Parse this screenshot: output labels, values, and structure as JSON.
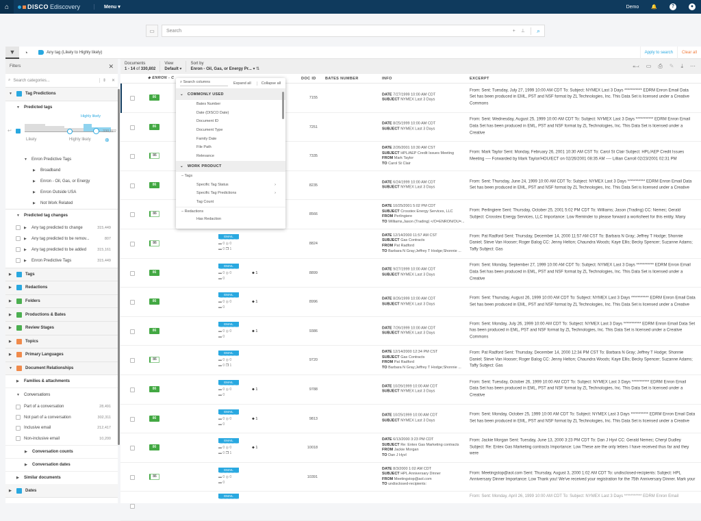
{
  "nav": {
    "brand": "DISCO",
    "product": "Ediscovery",
    "menu": "Menu",
    "user": "Demo"
  },
  "search": {
    "placeholder": "Search"
  },
  "filterbar": {
    "chip": "Any tag (Likely to Highly likely)",
    "apply": "Apply to search",
    "clear": "Clear all"
  },
  "sidebar": {
    "title": "Filters",
    "search_placeholder": "Search categories...",
    "tag_predictions": "Tag Predictions",
    "predicted_tags": "Predicted tags",
    "slider": {
      "label_top": "Highly likely",
      "label_low": "Likely",
      "label_high": "Highly likely",
      "count": "330,802",
      "range": [
        "Likely",
        "Highly likely"
      ]
    },
    "enron_predictive_tags": "Enron Predictive Tags",
    "predictive_children": [
      "Broadband",
      "Enron - Oil, Gas, or Energy",
      "Enron Outside USA",
      "Not Work Related"
    ],
    "predicted_tag_changes": "Predicted tag changes",
    "changes": [
      {
        "label": "Any tag predicted to change",
        "count": "315,449"
      },
      {
        "label": "Any tag predicted to be remov...",
        "count": "807"
      },
      {
        "label": "Any tag predicted to be added",
        "count": "315,161"
      },
      {
        "label": "Enron Predictive Tags",
        "count": "315,449"
      }
    ],
    "categories": [
      {
        "label": "Tags",
        "color": "#29a8e0"
      },
      {
        "label": "Redactions",
        "color": "#29a8e0"
      },
      {
        "label": "Folders",
        "color": "#4caf50"
      },
      {
        "label": "Productions & Bates",
        "color": "#4caf50"
      },
      {
        "label": "Review Stages",
        "color": "#4caf50"
      },
      {
        "label": "Topics",
        "color": "#f08a4b"
      },
      {
        "label": "Primary Languages",
        "color": "#f08a4b"
      }
    ],
    "doc_rel": "Document Relationships",
    "families": "Families & attachments",
    "conversations": "Conversations",
    "conv_items": [
      {
        "label": "Part of a conversation",
        "count": "28,491"
      },
      {
        "label": "Not part of a conversation",
        "count": "302,311"
      },
      {
        "label": "Inclusive email",
        "count": "212,417"
      },
      {
        "label": "Non-inclusive email",
        "count": "10,200"
      }
    ],
    "conv_counts": "Conversation counts",
    "conv_dates": "Conversation dates",
    "similar": "Similar documents",
    "dates": "Dates"
  },
  "toolbar": {
    "documents_label": "Documents",
    "range": "1 - 14",
    "of": "of",
    "total": "330,802",
    "view_label": "View",
    "view_value": "Default",
    "sort_label": "Sort by",
    "sort_value": "Enron - Oil, Gas, or Energy Pr..."
  },
  "columns": {
    "tag": "ENRON - C",
    "docid": "DOC ID",
    "bates": "BATES NUMBER",
    "info": "INFO",
    "excerpt": "EXCERPT"
  },
  "dropdown": {
    "search_placeholder": "Search columns",
    "expand": "Expand all",
    "collapse": "Collapse all",
    "common": "COMMONLY USED",
    "common_items": [
      "Bates Number",
      "Date (DISCO Date)",
      "Document ID",
      "Document Type",
      "Family Date",
      "File Path",
      "Relevance"
    ],
    "work": "WORK PRODUCT",
    "tags_group": "Tags",
    "tag_items": [
      "Specific Tag Status",
      "Specific Tag Predictions",
      "Tag Count"
    ],
    "redactions_group": "Redactions",
    "redaction_items": [
      "Has Redaction"
    ]
  },
  "rows": [
    {
      "score": "86",
      "style": "filled",
      "type": null,
      "tags": null,
      "docid": "7155",
      "date": "7/27/1999 10:00 AM CDT",
      "subject": "NYMEX Last 3 Days",
      "from": null,
      "to": null,
      "excerpt": "From: Sent: Tuesday, July 27, 1999 10:00 AM CDT To: Subject: NYMEX Last 3 Days *********** EDRM Enron Email Data Set has been produced in EML, PST and NSF format by ZL Technologies, Inc. This Data Set is licensed under a Creative Commons"
    },
    {
      "score": "86",
      "style": "filled",
      "type": null,
      "tags": null,
      "docid": "7251",
      "date": "8/25/1999 10:00 AM CDT",
      "subject": "NYMEX Last 3 Days",
      "from": null,
      "to": null,
      "excerpt": "From: Sent: Wednesday, August 25, 1999 10:00 AM CDT To: Subject: NYMEX Last 3 Days *********** EDRM Enron Email Data Set has been produced in EML, PST and NSF format by ZL Technologies, Inc. This Data Set is licensed under a Creative"
    },
    {
      "score": "86",
      "style": "outline",
      "type": null,
      "tags": null,
      "docid": "7335",
      "date": "2/26/2001 10:30 AM CST",
      "subject": "HPL/AEP Credit Issues Meeting",
      "from": "Mark Taylor",
      "to": "Carol St Clair",
      "excerpt": "From: Mark Taylor Sent: Monday, February 26, 2001 10:30 AM CST To: Carol St Clair Subject: HPL/AEP Credit Issues Meeting ---- Forwarded by Mark Taylor/HOU/ECT on 02/26/2001 08:35 AM ---- Lillian Carroll 02/23/2001 02:31 PM"
    },
    {
      "score": "86",
      "style": "filled",
      "type": null,
      "tags": null,
      "docid": "8235",
      "date": "6/24/1999 10:00 AM CDT",
      "subject": "NYMEX Last 3 Days",
      "from": null,
      "to": null,
      "excerpt": "From: Sent: Thursday, June 24, 1999 10:00 AM CDT To: Subject: NYMEX Last 3 Days *********** EDRM Enron Email Data Set has been produced in EML, PST and NSF format by ZL Technologies, Inc. This Data Set is licensed under a Creative"
    },
    {
      "score": "86",
      "style": "outline",
      "type": null,
      "tags": null,
      "docid": "8566",
      "date": "10/25/2001 5:02 PM CDT",
      "subject": "Crosstex Energy Services, LLC",
      "from": "Perlingiere",
      "to": "Williams,Jason (Trading) </O=ENRON/OU=...",
      "excerpt": "From: Perlingiere Sent: Thursday, October 25, 2001 5:02 PM CDT To: Williams; Jason (Trading) CC: Nemec; Gerald Subject: Crosstex Energy Services, LLC Importance: Low Reminder to please forward a worksheet for this entity. Many"
    },
    {
      "score": "86",
      "style": "outline",
      "type": "EMAIL",
      "notes": "0",
      "attach": "0",
      "folders": "0",
      "family": "1",
      "tags": null,
      "docid": "8824",
      "date": "12/14/2000 11:57 AM CST",
      "subject": "Gas Contracts",
      "from": "Pat Radford",
      "to": "Barbara N Gray;Jeffrey T Hodge;Shonnie ...",
      "excerpt": "From: Pat Radford Sent: Thursday, December 14, 2000 11:57 AM CST To: Barbara N Gray; Jeffrey T Hodge; Shonnie Daniel; Steve Van Hooser; Roger Balog CC: Jenny Helton; Chaundra Woods; Kaye Ellis; Becky Spencer; Suzanne Adams; Taffy Subject: Gas"
    },
    {
      "score": "86",
      "style": "filled",
      "type": "EMAIL",
      "notes": "0",
      "attach": "0",
      "folders": "0",
      "family": null,
      "tags": "1",
      "docid": "8899",
      "date": "9/27/1999 10:00 AM CDT",
      "subject": "NYMEX Last 3 Days",
      "from": null,
      "to": null,
      "excerpt": "From: Sent: Monday, September 27, 1999 10:00 AM CDT To: Subject: NYMEX Last 3 Days *********** EDRM Enron Email Data Set has been produced in EML, PST and NSF format by ZL Technologies, Inc. This Data Set is licensed under a Creative"
    },
    {
      "score": "86",
      "style": "filled",
      "type": "EMAIL",
      "notes": "0",
      "attach": "0",
      "folders": "0",
      "family": null,
      "tags": "1",
      "docid": "8996",
      "date": "8/26/1999 10:00 AM CDT",
      "subject": "NYMEX Last 3 Days",
      "from": null,
      "to": null,
      "excerpt": "From: Sent: Thursday, August 26, 1999 10:00 AM CDT To: Subject: NYMEX Last 3 Days *********** EDRM Enron Email Data Set has been produced in EML, PST and NSF format by ZL Technologies, Inc. This Data Set is licensed under a Creative"
    },
    {
      "score": "86",
      "style": "filled",
      "type": "EMAIL",
      "notes": "0",
      "attach": "0",
      "folders": "0",
      "family": null,
      "tags": "1",
      "docid": "9386",
      "date": "7/26/1999 10:00 AM CDT",
      "subject": "NYMEX Last 3 Days",
      "from": null,
      "to": null,
      "excerpt": "From: Sent: Monday, July 26, 1999 10:00 AM CDT To: Subject: NYMEX Last 3 Days *********** EDRM Enron Email Data Set has been produced in EML, PST and NSF format by ZL Technologies, Inc. This Data Set is licensed under a Creative Commons"
    },
    {
      "score": "86",
      "style": "outline",
      "type": "EMAIL",
      "notes": "0",
      "attach": "0",
      "folders": "0",
      "family": "1",
      "tags": null,
      "docid": "9720",
      "date": "12/14/2000 12:34 PM CST",
      "subject": "Gas Contracts",
      "from": "Pat Radford",
      "to": "Barbara N Gray;Jeffrey T Hodge;Shonnie ...",
      "excerpt": "From: Pat Radford Sent: Thursday, December 14, 2000 12:34 PM CST To: Barbara N Gray; Jeffrey T Hodge; Shonnie Daniel; Steve Van Hooser; Roger Balog CC: Jenny Helton; Chaundra Woods; Kaye Ellis; Becky Spencer; Suzanne Adams; Taffy Subject: Gas"
    },
    {
      "score": "86",
      "style": "filled",
      "type": "EMAIL",
      "notes": "0",
      "attach": "0",
      "folders": "0",
      "family": null,
      "tags": "1",
      "docid": "9788",
      "date": "10/26/1999 10:00 AM CDT",
      "subject": "NYMEX Last 3 Days",
      "from": null,
      "to": null,
      "excerpt": "From: Sent: Tuesday, October 26, 1999 10:00 AM CDT To: Subject: NYMEX Last 3 Days *********** EDRM Enron Email Data Set has been produced in EML, PST and NSF format by ZL Technologies, Inc. This Data Set is licensed under a Creative"
    },
    {
      "score": "86",
      "style": "filled",
      "type": "EMAIL",
      "notes": "0",
      "attach": "0",
      "folders": "0",
      "family": null,
      "tags": "1",
      "docid": "9813",
      "date": "10/25/1999 10:00 AM CDT",
      "subject": "NYMEX Last 3 Days",
      "from": null,
      "to": null,
      "excerpt": "From: Sent: Monday, October 25, 1999 10:00 AM CDT To: Subject: NYMEX Last 3 Days *********** EDRM Enron Email Data Set has been produced in EML, PST and NSF format by ZL Technologies, Inc. This Data Set is licensed under a Creative"
    },
    {
      "score": "86",
      "style": "filled",
      "type": "EMAIL",
      "notes": "0",
      "attach": "0",
      "folders": "0",
      "family": "1",
      "tags": "1",
      "docid": "10018",
      "date": "6/13/2000 3:23 PM CDT",
      "subject": "Re: Entex Gas Marketing contracts",
      "from": "Jackie Morgan",
      "to": "Dan J Hyvl",
      "excerpt": "From: Jackie Morgan Sent: Tuesday, June 13, 2000 3:23 PM CDT To: Dan J Hyvl CC: Gerald Nemec; Cheryl Dudley Subject: Re: Entex Gas Marketing contracts Importance: Low These are the only letters I have received thus far and they were"
    },
    {
      "score": "86",
      "style": "outline",
      "type": "EMAIL",
      "notes": "0",
      "attach": "0",
      "folders": "0",
      "family": null,
      "tags": null,
      "docid": "10391",
      "date": "8/3/2000 1:02 AM CDT",
      "subject": "HPL Anniversary Dinner",
      "from": "Meetingstop@aol.com",
      "to": "undisclosed-recipients:",
      "excerpt": "From: Meetingstop@aol.com Sent: Thursday, August 3, 2000 1:02 AM CDT To: undisclosed-recipients: Subject: HPL Anniversary Dinner Importance: Low Thank you! We've received your registration for the 75th Anniversary Dinner. Mark your"
    },
    {
      "score": null,
      "style": "filled",
      "type": "EMAIL",
      "tags": null,
      "docid": null,
      "date": null,
      "subject": null,
      "from": null,
      "to": null,
      "excerpt": "From: Sent: Monday, April 26, 1999 10:00 AM CDT To: Subject: NYMEX Last 3 Days *********** EDRM Enron Email"
    }
  ]
}
